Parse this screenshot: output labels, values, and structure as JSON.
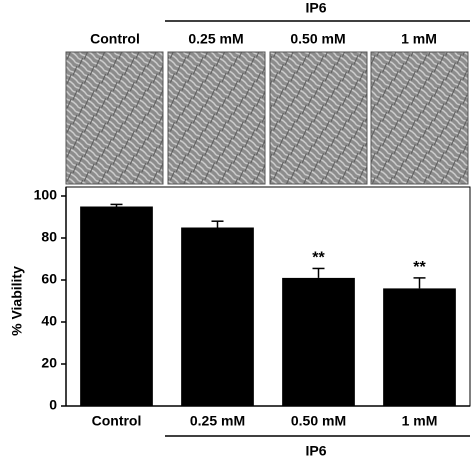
{
  "image_panel": {
    "group_label": "IP6",
    "labels": [
      "Control",
      "0.25 mM",
      "0.50 mM",
      "1 mM"
    ]
  },
  "chart_data": {
    "type": "bar",
    "y_label": "% Viability",
    "categories": [
      "Control",
      "0.25 mM",
      "0.50 mM",
      "1 mM"
    ],
    "values": [
      95,
      85,
      61,
      56
    ],
    "errors": [
      1,
      3,
      4.5,
      5
    ],
    "value_annotations": [
      null,
      null,
      "**",
      "**"
    ],
    "group_label": "IP6",
    "color": "#000000",
    "ylim": [
      0,
      100
    ],
    "yticks": [
      0,
      20,
      40,
      60,
      80,
      100
    ]
  }
}
